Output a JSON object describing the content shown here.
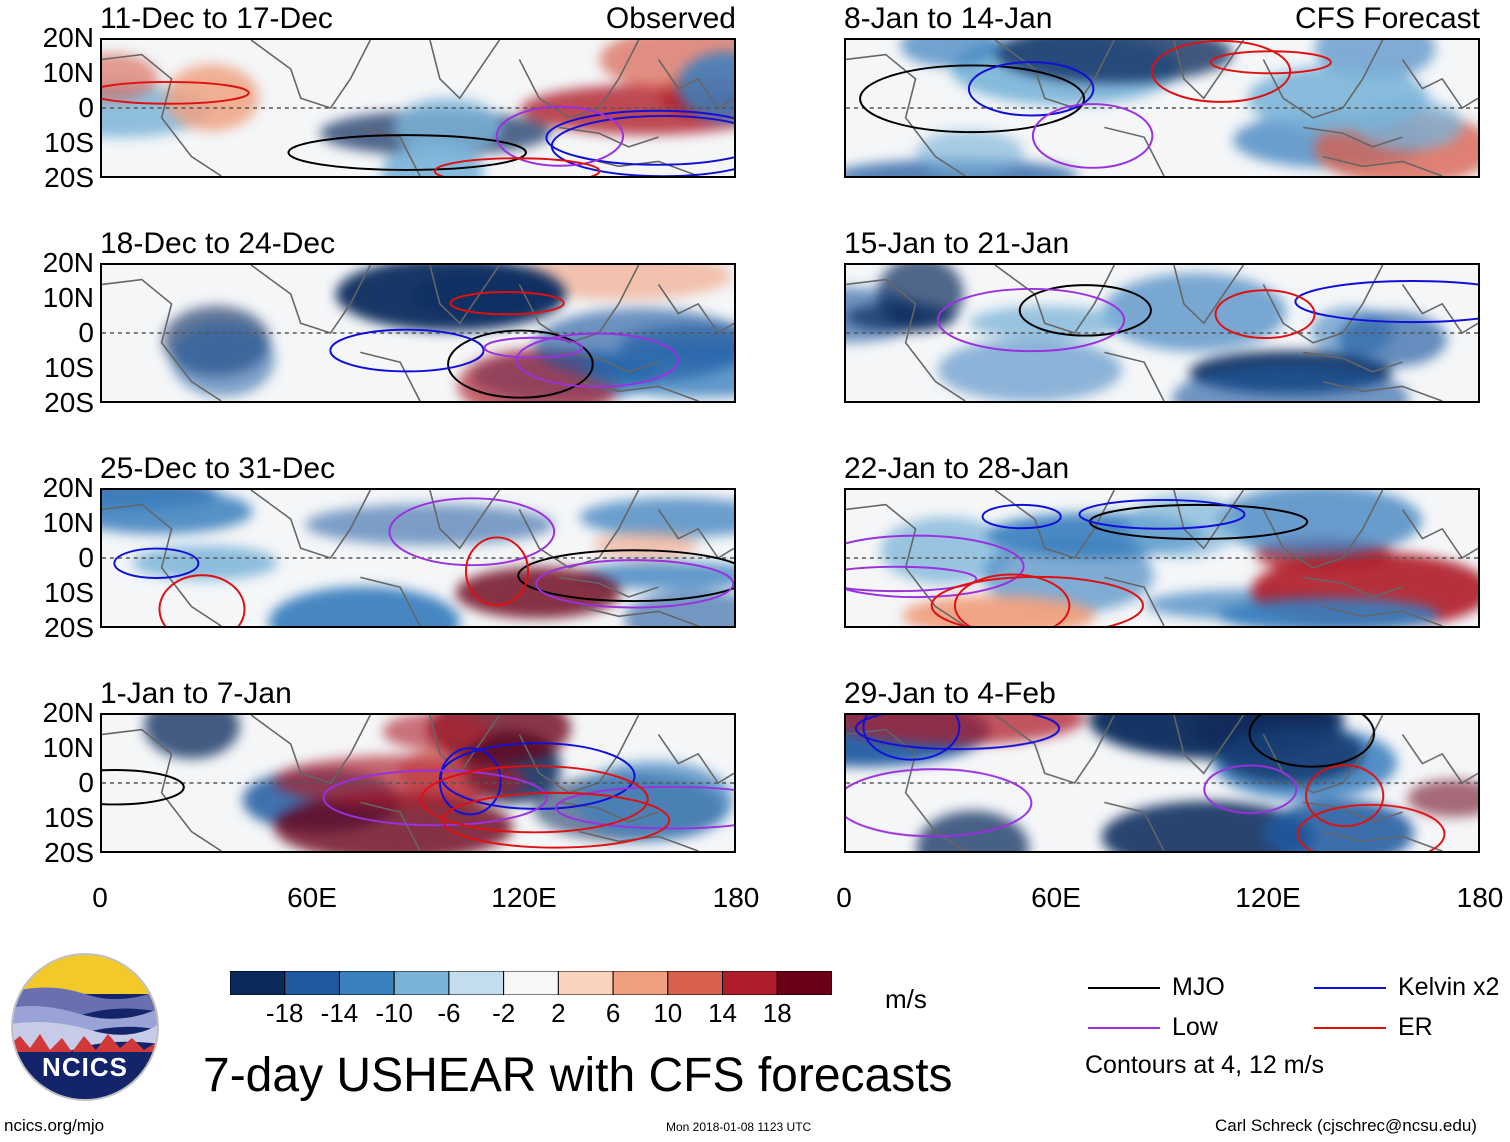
{
  "chart_data": {
    "type": "heatmap",
    "title": "7-day USHEAR with CFS forecasts",
    "units": "m/s",
    "xticks": [
      "0",
      "60E",
      "120E",
      "180"
    ],
    "xrange": [
      0,
      180
    ],
    "yticks": [
      "20N",
      "10N",
      "0",
      "10S",
      "20S"
    ],
    "yrange": [
      -20,
      20
    ],
    "panels": [
      {
        "period": "11-Dec to 17-Dec",
        "tag": "Observed",
        "column": "observed"
      },
      {
        "period": "18-Dec to 24-Dec",
        "tag": "",
        "column": "observed"
      },
      {
        "period": "25-Dec to 31-Dec",
        "tag": "",
        "column": "observed"
      },
      {
        "period": "1-Jan to 7-Jan",
        "tag": "",
        "column": "observed"
      },
      {
        "period": "8-Jan to 14-Jan",
        "tag": "CFS Forecast",
        "column": "forecast"
      },
      {
        "period": "15-Jan to 21-Jan",
        "tag": "",
        "column": "forecast"
      },
      {
        "period": "22-Jan to 28-Jan",
        "tag": "",
        "column": "forecast"
      },
      {
        "period": "29-Jan to 4-Feb",
        "tag": "",
        "column": "forecast"
      }
    ],
    "colorbar": {
      "labels": [
        "-18",
        "-14",
        "-10",
        "-6",
        "-2",
        "2",
        "6",
        "10",
        "14",
        "18"
      ],
      "colors": [
        "#0a2a5c",
        "#1f5aa0",
        "#3a7fbe",
        "#7bb3d8",
        "#c3dcee",
        "#f7f7f7",
        "#fbd2bb",
        "#f0a07f",
        "#d8604e",
        "#b01d2a",
        "#6a0016"
      ]
    },
    "legend": [
      {
        "name": "MJO",
        "color": "#000000"
      },
      {
        "name": "Kelvin x2",
        "color": "#1010d8"
      },
      {
        "name": "Low",
        "color": "#9b30e0"
      },
      {
        "name": "ER",
        "color": "#e01010"
      }
    ],
    "contour_note": "Contours at 4, 12 m/s"
  },
  "footer": {
    "logo_text": "NCICS",
    "site": "ncics.org/mjo",
    "timestamp": "Mon 2018-01-08 1123 UTC",
    "author": "Carl Schreck (cjschrec@ncsu.edu)"
  }
}
